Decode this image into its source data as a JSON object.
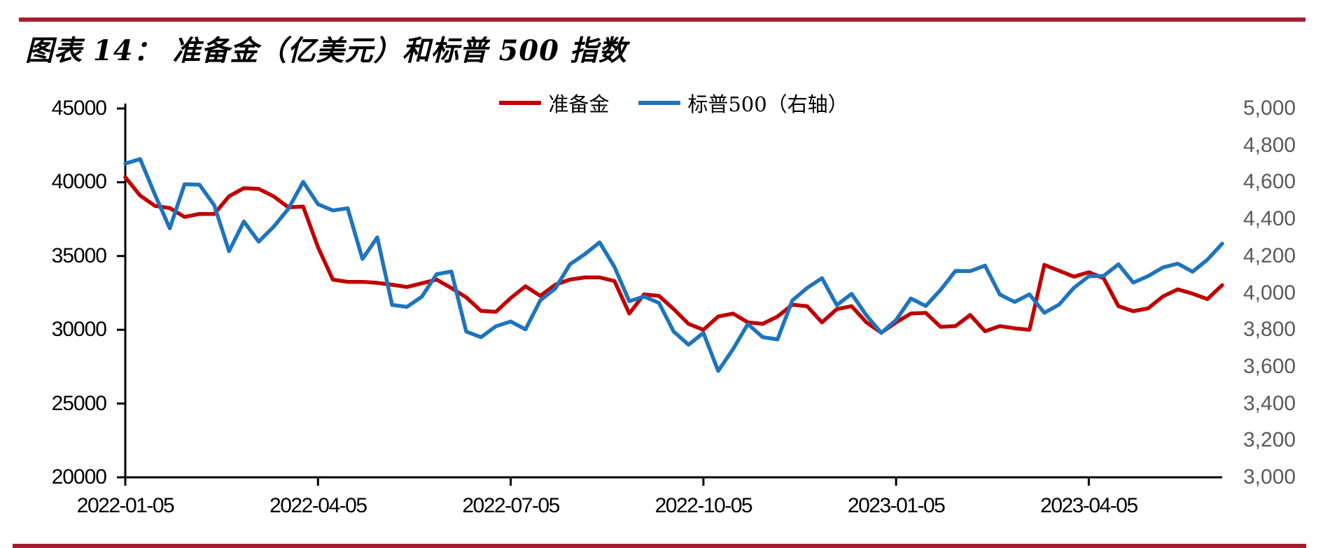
{
  "header": {
    "title": "图表 14： 准备金（亿美元）和标普 500 指数"
  },
  "rule_color": "#a51c30",
  "chart_data": {
    "type": "line",
    "title": "准备金（亿美元）和标普500指数",
    "grid": false,
    "legend_position": "top-center",
    "x": [
      "2022-01-05",
      "2022-01-12",
      "2022-01-19",
      "2022-01-26",
      "2022-02-02",
      "2022-02-09",
      "2022-02-16",
      "2022-02-23",
      "2022-03-02",
      "2022-03-09",
      "2022-03-16",
      "2022-03-23",
      "2022-03-30",
      "2022-04-06",
      "2022-04-13",
      "2022-04-20",
      "2022-04-27",
      "2022-05-04",
      "2022-05-11",
      "2022-05-18",
      "2022-05-25",
      "2022-06-01",
      "2022-06-08",
      "2022-06-15",
      "2022-06-22",
      "2022-06-29",
      "2022-07-06",
      "2022-07-13",
      "2022-07-20",
      "2022-07-27",
      "2022-08-03",
      "2022-08-10",
      "2022-08-17",
      "2022-08-24",
      "2022-08-31",
      "2022-09-07",
      "2022-09-14",
      "2022-09-21",
      "2022-09-28",
      "2022-10-05",
      "2022-10-12",
      "2022-10-19",
      "2022-10-26",
      "2022-11-02",
      "2022-11-09",
      "2022-11-16",
      "2022-11-23",
      "2022-11-30",
      "2022-12-07",
      "2022-12-14",
      "2022-12-21",
      "2022-12-28",
      "2023-01-04",
      "2023-01-11",
      "2023-01-18",
      "2023-01-25",
      "2023-02-01",
      "2023-02-08",
      "2023-02-15",
      "2023-02-22",
      "2023-03-01",
      "2023-03-08",
      "2023-03-15",
      "2023-03-22",
      "2023-03-29",
      "2023-04-05",
      "2023-04-12",
      "2023-04-19",
      "2023-04-26",
      "2023-05-03",
      "2023-05-10",
      "2023-05-17",
      "2023-05-24",
      "2023-05-31",
      "2023-06-07"
    ],
    "series": [
      {
        "name": "准备金",
        "axis": "left",
        "color": "#c00000",
        "values": [
          40340,
          39100,
          38400,
          38250,
          37650,
          37850,
          37850,
          39050,
          39600,
          39550,
          39050,
          38300,
          38350,
          35600,
          33400,
          33250,
          33250,
          33180,
          33050,
          32900,
          33150,
          33400,
          32830,
          32200,
          31280,
          31220,
          32150,
          32950,
          32300,
          33050,
          33400,
          33550,
          33550,
          33300,
          31100,
          32400,
          32300,
          31400,
          30400,
          30000,
          30900,
          31100,
          30500,
          30400,
          30900,
          31700,
          31600,
          30500,
          31400,
          31600,
          30500,
          29800,
          30500,
          31100,
          31150,
          30200,
          30250,
          31000,
          29900,
          30250,
          30100,
          30000,
          34400,
          34000,
          33600,
          33900,
          33500,
          31600,
          31260,
          31450,
          32260,
          32740,
          32450,
          32080,
          33030
        ]
      },
      {
        "name": "标普500（右轴）",
        "axis": "right",
        "color": "#1f74bc",
        "values": [
          4701,
          4726,
          4533,
          4350,
          4589,
          4587,
          4475,
          4226,
          4387,
          4278,
          4358,
          4456,
          4602,
          4481,
          4447,
          4459,
          4184,
          4301,
          3935,
          3924,
          3979,
          4101,
          4116,
          3790,
          3760,
          3819,
          3845,
          3802,
          3960,
          4023,
          4155,
          4210,
          4274,
          4141,
          3955,
          3980,
          3946,
          3790,
          3719,
          3783,
          3577,
          3695,
          3831,
          3760,
          3748,
          3959,
          4027,
          4080,
          3934,
          3995,
          3878,
          3783,
          3853,
          3970,
          3929,
          4016,
          4119,
          4118,
          4148,
          3991,
          3951,
          3992,
          3892,
          3937,
          4028,
          4090,
          4092,
          4155,
          4056,
          4091,
          4138,
          4159,
          4115,
          4180,
          4267
        ]
      }
    ],
    "left_axis": {
      "min": 20000,
      "max": 45000,
      "ticks": [
        45000,
        40000,
        35000,
        30000,
        25000,
        20000
      ]
    },
    "right_axis": {
      "min": 3000,
      "max": 5000,
      "ticks": [
        5000,
        4800,
        4600,
        4400,
        4200,
        4000,
        3800,
        3600,
        3400,
        3200,
        3000
      ],
      "tick_labels": [
        "5,000",
        "4,800",
        "4,600",
        "4,400",
        "4,200",
        "4,000",
        "3,800",
        "3,600",
        "3,400",
        "3,200",
        "3,000"
      ]
    },
    "x_tick_indices": [
      0,
      13,
      26,
      39,
      52,
      65
    ],
    "x_tick_labels": [
      "2022-01-05",
      "2022-04-05",
      "2022-07-05",
      "2022-10-05",
      "2023-01-05",
      "2023-04-05"
    ],
    "axis_color": "#000000",
    "right_label_color": "#595959"
  }
}
